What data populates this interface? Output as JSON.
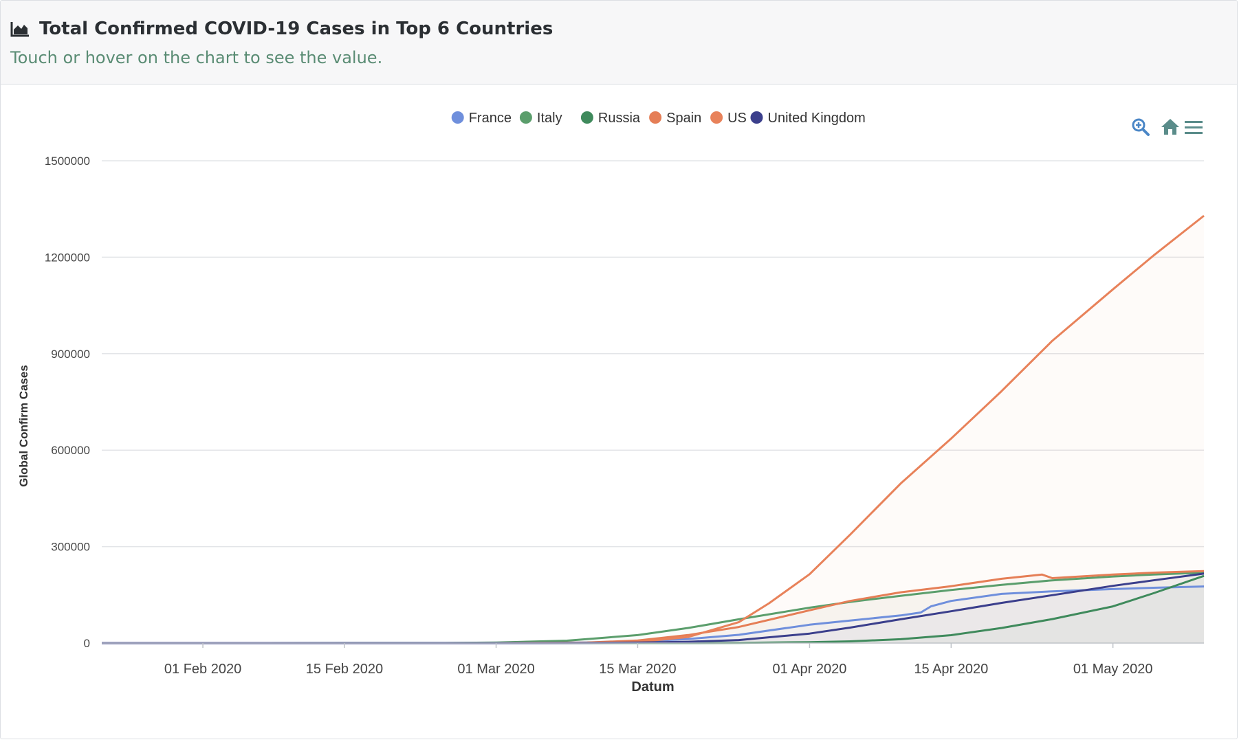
{
  "header": {
    "title": "Total Confirmed COVID-19 Cases in Top 6 Countries",
    "subtitle": "Touch or hover on the chart to see the value."
  },
  "toolbar": {
    "zoom_icon": "zoom-in-icon",
    "home_icon": "home-icon",
    "menu_icon": "menu-icon"
  },
  "chart_data": {
    "type": "line",
    "xlabel": "Datum",
    "ylabel": "Global Confirm Cases",
    "x_range": [
      "2020-01-22",
      "2020-05-10"
    ],
    "ylim": [
      0,
      1500000
    ],
    "y_ticks": [
      0,
      300000,
      600000,
      900000,
      1200000,
      1500000
    ],
    "x_ticks": [
      {
        "date": "2020-02-01",
        "label": "01 Feb 2020"
      },
      {
        "date": "2020-02-15",
        "label": "15 Feb 2020"
      },
      {
        "date": "2020-03-01",
        "label": "01 Mar 2020"
      },
      {
        "date": "2020-03-15",
        "label": "15 Mar 2020"
      },
      {
        "date": "2020-04-01",
        "label": "01 Apr 2020"
      },
      {
        "date": "2020-04-15",
        "label": "15 Apr 2020"
      },
      {
        "date": "2020-05-01",
        "label": "01 May 2020"
      }
    ],
    "grid": true,
    "legend_position": "top-center",
    "series": [
      {
        "name": "France",
        "color": "#6f8fdc",
        "points": [
          [
            "2020-01-22",
            0
          ],
          [
            "2020-03-01",
            130
          ],
          [
            "2020-03-10",
            1800
          ],
          [
            "2020-03-15",
            5400
          ],
          [
            "2020-03-20",
            12600
          ],
          [
            "2020-03-25",
            25600
          ],
          [
            "2020-04-01",
            57000
          ],
          [
            "2020-04-05",
            70000
          ],
          [
            "2020-04-10",
            86000
          ],
          [
            "2020-04-12",
            95000
          ],
          [
            "2020-04-13",
            114000
          ],
          [
            "2020-04-15",
            131000
          ],
          [
            "2020-04-20",
            153000
          ],
          [
            "2020-04-25",
            161000
          ],
          [
            "2020-05-01",
            168000
          ],
          [
            "2020-05-05",
            172000
          ],
          [
            "2020-05-10",
            176000
          ]
        ]
      },
      {
        "name": "Italy",
        "color": "#5b9e6c",
        "points": [
          [
            "2020-01-22",
            0
          ],
          [
            "2020-02-25",
            300
          ],
          [
            "2020-03-01",
            1700
          ],
          [
            "2020-03-08",
            7400
          ],
          [
            "2020-03-15",
            24700
          ],
          [
            "2020-03-20",
            47000
          ],
          [
            "2020-03-25",
            74000
          ],
          [
            "2020-04-01",
            110000
          ],
          [
            "2020-04-05",
            128000
          ],
          [
            "2020-04-10",
            147000
          ],
          [
            "2020-04-15",
            165000
          ],
          [
            "2020-04-20",
            181000
          ],
          [
            "2020-04-25",
            195000
          ],
          [
            "2020-05-01",
            207000
          ],
          [
            "2020-05-05",
            213000
          ],
          [
            "2020-05-10",
            219000
          ]
        ]
      },
      {
        "name": "Russia",
        "color": "#3f8a5c",
        "points": [
          [
            "2020-01-22",
            0
          ],
          [
            "2020-03-20",
            250
          ],
          [
            "2020-03-25",
            700
          ],
          [
            "2020-04-01",
            2800
          ],
          [
            "2020-04-05",
            5400
          ],
          [
            "2020-04-10",
            11900
          ],
          [
            "2020-04-15",
            24500
          ],
          [
            "2020-04-20",
            47000
          ],
          [
            "2020-04-25",
            74600
          ],
          [
            "2020-05-01",
            114000
          ],
          [
            "2020-05-05",
            155000
          ],
          [
            "2020-05-10",
            209000
          ]
        ]
      },
      {
        "name": "Spain",
        "color": "#e57e56",
        "points": [
          [
            "2020-01-22",
            0
          ],
          [
            "2020-03-01",
            80
          ],
          [
            "2020-03-10",
            1700
          ],
          [
            "2020-03-15",
            7800
          ],
          [
            "2020-03-20",
            25000
          ],
          [
            "2020-03-25",
            50000
          ],
          [
            "2020-04-01",
            102000
          ],
          [
            "2020-04-05",
            131000
          ],
          [
            "2020-04-10",
            158000
          ],
          [
            "2020-04-15",
            177000
          ],
          [
            "2020-04-20",
            200000
          ],
          [
            "2020-04-24",
            213000
          ],
          [
            "2020-04-25",
            202000
          ],
          [
            "2020-05-01",
            213000
          ],
          [
            "2020-05-05",
            219000
          ],
          [
            "2020-05-10",
            224000
          ]
        ]
      },
      {
        "name": "US",
        "color": "#e8825a",
        "points": [
          [
            "2020-01-22",
            0
          ],
          [
            "2020-03-01",
            70
          ],
          [
            "2020-03-10",
            1000
          ],
          [
            "2020-03-15",
            3500
          ],
          [
            "2020-03-20",
            19000
          ],
          [
            "2020-03-25",
            65000
          ],
          [
            "2020-03-28",
            124000
          ],
          [
            "2020-04-01",
            214000
          ],
          [
            "2020-04-05",
            337000
          ],
          [
            "2020-04-10",
            496000
          ],
          [
            "2020-04-15",
            636000
          ],
          [
            "2020-04-20",
            784000
          ],
          [
            "2020-04-25",
            940000
          ],
          [
            "2020-05-01",
            1100000
          ],
          [
            "2020-05-05",
            1205000
          ],
          [
            "2020-05-10",
            1329000
          ]
        ]
      },
      {
        "name": "United Kingdom",
        "color": "#3b3f8c",
        "points": [
          [
            "2020-01-22",
            0
          ],
          [
            "2020-03-05",
            100
          ],
          [
            "2020-03-10",
            380
          ],
          [
            "2020-03-15",
            1400
          ],
          [
            "2020-03-20",
            4000
          ],
          [
            "2020-03-25",
            9500
          ],
          [
            "2020-04-01",
            29500
          ],
          [
            "2020-04-05",
            48000
          ],
          [
            "2020-04-10",
            74000
          ],
          [
            "2020-04-15",
            99000
          ],
          [
            "2020-04-20",
            125000
          ],
          [
            "2020-04-25",
            149000
          ],
          [
            "2020-05-01",
            178000
          ],
          [
            "2020-05-05",
            195000
          ],
          [
            "2020-05-10",
            216000
          ]
        ]
      }
    ]
  }
}
